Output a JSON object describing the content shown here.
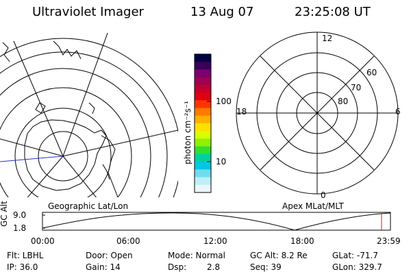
{
  "header": {
    "instrument": "Ultraviolet Imager",
    "date": "13 Aug 07",
    "time": "23:25:08 UT"
  },
  "colorbar": {
    "label": "photon cm⁻²s⁻¹",
    "scale": "log",
    "tick_labels": [
      "100",
      "10"
    ],
    "colors": [
      "#000044",
      "#3a0059",
      "#7a0070",
      "#a00050",
      "#c00030",
      "#e00010",
      "#ff3300",
      "#ff7a00",
      "#ffb000",
      "#ffe000",
      "#d8ff00",
      "#90f000",
      "#30e030",
      "#00d0a0",
      "#00c8e0",
      "#70dcf0",
      "#bfeef7",
      "#eaf6f8"
    ]
  },
  "left_panel": {
    "caption": "Geographic Lat/Lon"
  },
  "right_panel": {
    "caption": "Apex MLat/MLT",
    "mlt_labels": {
      "top": "12",
      "left": "18",
      "right": "6",
      "bottom": "0"
    },
    "mlat_labels": [
      "60",
      "70",
      "80"
    ]
  },
  "altitude_plot": {
    "ylabel": "GC Alt",
    "ytick_labels": [
      "9.0",
      "1.8"
    ],
    "xtick_labels": [
      "00:00",
      "06:00",
      "12:00",
      "18:00",
      "23:59"
    ],
    "marker_time": "23:25",
    "marker_color": "#cc2200"
  },
  "footer": {
    "row1": {
      "flt": "Flt: LBHL",
      "door": "Door: Open",
      "mode": "Mode: Normal",
      "gcalt": "GC Alt: 8.2 Re",
      "glat": "GLat: -71.7"
    },
    "row2": {
      "ip": "IP: 36.0",
      "gain": "Gain: 14",
      "dsp_label": "Dsp:",
      "dsp_value": "2.8",
      "seq": "Seq: 39",
      "glon": "GLon: 329.7"
    }
  }
}
